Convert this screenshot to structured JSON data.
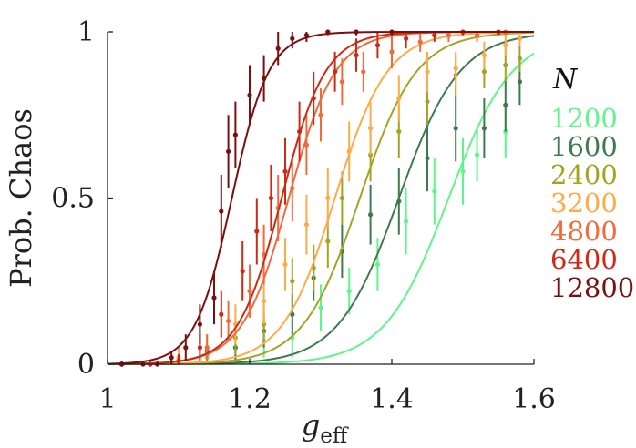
{
  "chart_data": {
    "type": "line",
    "title": "",
    "xlabel": "g",
    "xlabel_sub": "eff",
    "ylabel": "Prob. Chaos",
    "xlim": [
      1.0,
      1.6
    ],
    "ylim": [
      0,
      1
    ],
    "xticks": [
      1.0,
      1.2,
      1.4,
      1.6
    ],
    "xtick_labels": [
      "1",
      "1.2",
      "1.4",
      "1.6"
    ],
    "yticks": [
      0,
      0.5,
      1
    ],
    "ytick_labels": [
      "0",
      "0.5",
      "1"
    ],
    "grid": false,
    "legend": {
      "title": "N",
      "placement": "right-outside"
    },
    "series": [
      {
        "name": "1200",
        "color": "#5ef58a",
        "fit": {
          "x0": 1.48,
          "width": 0.045
        },
        "points": [
          [
            1.02,
            0.0,
            0.01
          ],
          [
            1.06,
            0.0,
            0.01
          ],
          [
            1.1,
            0.01,
            0.02
          ],
          [
            1.14,
            0.02,
            0.02
          ],
          [
            1.18,
            0.05,
            0.04
          ],
          [
            1.22,
            0.07,
            0.05
          ],
          [
            1.26,
            0.08,
            0.06
          ],
          [
            1.3,
            0.17,
            0.07
          ],
          [
            1.34,
            0.22,
            0.07
          ],
          [
            1.38,
            0.3,
            0.08
          ],
          [
            1.42,
            0.43,
            0.1
          ],
          [
            1.46,
            0.52,
            0.1
          ],
          [
            1.5,
            0.58,
            0.1
          ],
          [
            1.52,
            0.63,
            0.08
          ],
          [
            1.56,
            0.7,
            0.08
          ]
        ]
      },
      {
        "name": "1600",
        "color": "#3f7a4f",
        "fit": {
          "x0": 1.41,
          "width": 0.043
        },
        "points": [
          [
            1.02,
            0.0,
            0.01
          ],
          [
            1.06,
            0.0,
            0.01
          ],
          [
            1.1,
            0.01,
            0.02
          ],
          [
            1.14,
            0.04,
            0.03
          ],
          [
            1.18,
            0.05,
            0.04
          ],
          [
            1.22,
            0.1,
            0.05
          ],
          [
            1.26,
            0.15,
            0.06
          ],
          [
            1.29,
            0.26,
            0.07
          ],
          [
            1.33,
            0.34,
            0.08
          ],
          [
            1.37,
            0.45,
            0.09
          ],
          [
            1.41,
            0.49,
            0.1
          ],
          [
            1.45,
            0.62,
            0.1
          ],
          [
            1.49,
            0.71,
            0.1
          ],
          [
            1.53,
            0.71,
            0.09
          ],
          [
            1.56,
            0.78,
            0.08
          ],
          [
            1.58,
            0.85,
            0.07
          ]
        ]
      },
      {
        "name": "2400",
        "color": "#a3a423",
        "fit": {
          "x0": 1.355,
          "width": 0.04
        },
        "points": [
          [
            1.02,
            0.0,
            0.01
          ],
          [
            1.06,
            0.0,
            0.01
          ],
          [
            1.1,
            0.01,
            0.02
          ],
          [
            1.14,
            0.03,
            0.03
          ],
          [
            1.18,
            0.08,
            0.05
          ],
          [
            1.22,
            0.12,
            0.06
          ],
          [
            1.26,
            0.25,
            0.07
          ],
          [
            1.29,
            0.29,
            0.07
          ],
          [
            1.31,
            0.37,
            0.08
          ],
          [
            1.33,
            0.5,
            0.08
          ],
          [
            1.37,
            0.63,
            0.08
          ],
          [
            1.41,
            0.7,
            0.08
          ],
          [
            1.45,
            0.79,
            0.07
          ],
          [
            1.49,
            0.87,
            0.06
          ],
          [
            1.53,
            0.88,
            0.05
          ],
          [
            1.56,
            0.9,
            0.05
          ],
          [
            1.58,
            0.92,
            0.04
          ]
        ]
      },
      {
        "name": "3200",
        "color": "#fbab48",
        "fit": {
          "x0": 1.32,
          "width": 0.037
        },
        "points": [
          [
            1.02,
            0.0,
            0.01
          ],
          [
            1.06,
            0.0,
            0.01
          ],
          [
            1.1,
            0.02,
            0.03
          ],
          [
            1.14,
            0.05,
            0.04
          ],
          [
            1.18,
            0.12,
            0.06
          ],
          [
            1.22,
            0.19,
            0.07
          ],
          [
            1.25,
            0.3,
            0.08
          ],
          [
            1.28,
            0.42,
            0.09
          ],
          [
            1.31,
            0.5,
            0.09
          ],
          [
            1.34,
            0.64,
            0.09
          ],
          [
            1.37,
            0.71,
            0.08
          ],
          [
            1.41,
            0.8,
            0.07
          ],
          [
            1.45,
            0.88,
            0.06
          ],
          [
            1.49,
            0.89,
            0.05
          ],
          [
            1.53,
            0.93,
            0.04
          ],
          [
            1.56,
            0.96,
            0.03
          ],
          [
            1.58,
            0.98,
            0.02
          ]
        ]
      },
      {
        "name": "4800",
        "color": "#f26a3a",
        "fit": {
          "x0": 1.255,
          "width": 0.033
        },
        "points": [
          [
            1.02,
            0.0,
            0.01
          ],
          [
            1.06,
            0.0,
            0.01
          ],
          [
            1.1,
            0.01,
            0.02
          ],
          [
            1.14,
            0.05,
            0.04
          ],
          [
            1.17,
            0.13,
            0.06
          ],
          [
            1.2,
            0.22,
            0.08
          ],
          [
            1.22,
            0.33,
            0.09
          ],
          [
            1.24,
            0.47,
            0.1
          ],
          [
            1.26,
            0.53,
            0.1
          ],
          [
            1.28,
            0.66,
            0.09
          ],
          [
            1.3,
            0.75,
            0.08
          ],
          [
            1.33,
            0.85,
            0.07
          ],
          [
            1.36,
            0.88,
            0.06
          ],
          [
            1.4,
            0.94,
            0.05
          ],
          [
            1.44,
            0.97,
            0.03
          ],
          [
            1.48,
            0.99,
            0.02
          ],
          [
            1.52,
            0.99,
            0.02
          ],
          [
            1.56,
            1.0,
            0.01
          ]
        ]
      },
      {
        "name": "6400",
        "color": "#cc2a14",
        "fit": {
          "x0": 1.245,
          "width": 0.031
        },
        "points": [
          [
            1.02,
            0.0,
            0.01
          ],
          [
            1.06,
            0.0,
            0.01
          ],
          [
            1.1,
            0.01,
            0.02
          ],
          [
            1.13,
            0.05,
            0.04
          ],
          [
            1.16,
            0.15,
            0.07
          ],
          [
            1.19,
            0.28,
            0.09
          ],
          [
            1.21,
            0.4,
            0.1
          ],
          [
            1.23,
            0.5,
            0.1
          ],
          [
            1.25,
            0.58,
            0.1
          ],
          [
            1.27,
            0.7,
            0.09
          ],
          [
            1.29,
            0.8,
            0.08
          ],
          [
            1.32,
            0.88,
            0.06
          ],
          [
            1.35,
            0.93,
            0.05
          ],
          [
            1.38,
            0.96,
            0.04
          ],
          [
            1.42,
            0.98,
            0.03
          ],
          [
            1.46,
            0.99,
            0.02
          ],
          [
            1.5,
            1.0,
            0.01
          ],
          [
            1.55,
            1.0,
            0.01
          ]
        ]
      },
      {
        "name": "12800",
        "color": "#7a0f0f",
        "fit": {
          "x0": 1.175,
          "width": 0.026
        },
        "points": [
          [
            1.02,
            0.0,
            0.01
          ],
          [
            1.05,
            0.0,
            0.01
          ],
          [
            1.07,
            0.0,
            0.01
          ],
          [
            1.09,
            0.02,
            0.02
          ],
          [
            1.11,
            0.05,
            0.04
          ],
          [
            1.13,
            0.12,
            0.06
          ],
          [
            1.15,
            0.2,
            0.08
          ],
          [
            1.16,
            0.46,
            0.11
          ],
          [
            1.17,
            0.64,
            0.11
          ],
          [
            1.18,
            0.69,
            0.1
          ],
          [
            1.2,
            0.81,
            0.09
          ],
          [
            1.22,
            0.86,
            0.07
          ],
          [
            1.24,
            0.95,
            0.05
          ],
          [
            1.26,
            0.98,
            0.03
          ],
          [
            1.28,
            0.99,
            0.02
          ],
          [
            1.31,
            1.0,
            0.01
          ],
          [
            1.35,
            1.0,
            0.01
          ],
          [
            1.4,
            1.0,
            0.01
          ]
        ]
      }
    ]
  }
}
